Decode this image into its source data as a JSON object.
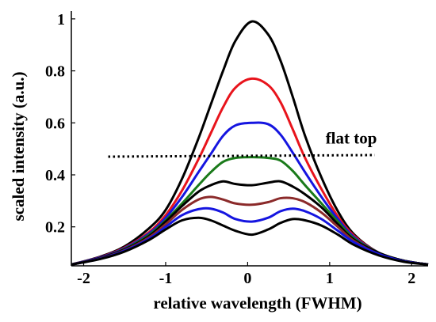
{
  "chart_data": {
    "type": "line",
    "title": "",
    "xlabel": "relative wavelength (FWHM)",
    "ylabel": "scaled intensity (a.u.)",
    "xlim": [
      -2.15,
      2.2
    ],
    "ylim": [
      0.05,
      1.03
    ],
    "grid": false,
    "xticks": [
      {
        "value": -2,
        "label": "-2"
      },
      {
        "value": -1,
        "label": "-1"
      },
      {
        "value": 0,
        "label": "0"
      },
      {
        "value": 1,
        "label": "1"
      },
      {
        "value": 2,
        "label": "2"
      }
    ],
    "yticks": [
      {
        "value": 0.2,
        "label": "0.2"
      },
      {
        "value": 0.4,
        "label": "0.4"
      },
      {
        "value": 0.6,
        "label": "0.6"
      },
      {
        "value": 0.8,
        "label": "0.8"
      },
      {
        "value": 1.0,
        "label": "1"
      }
    ],
    "x": [
      -2.15,
      -1.8,
      -1.5,
      -1.2,
      -1.0,
      -0.8,
      -0.6,
      -0.45,
      -0.3,
      -0.15,
      0.05,
      0.25,
      0.4,
      0.55,
      0.7,
      0.9,
      1.1,
      1.3,
      1.6,
      1.9,
      2.2
    ],
    "series": [
      {
        "color": "#000000",
        "values": [
          0.055,
          0.085,
          0.125,
          0.195,
          0.265,
          0.385,
          0.54,
          0.67,
          0.8,
          0.915,
          0.99,
          0.94,
          0.84,
          0.7,
          0.55,
          0.39,
          0.26,
          0.17,
          0.1,
          0.07,
          0.055
        ]
      },
      {
        "color": "#e8141c",
        "values": [
          0.055,
          0.083,
          0.12,
          0.18,
          0.245,
          0.34,
          0.46,
          0.56,
          0.66,
          0.735,
          0.77,
          0.745,
          0.68,
          0.575,
          0.465,
          0.345,
          0.24,
          0.165,
          0.1,
          0.07,
          0.055
        ]
      },
      {
        "color": "#1515e0",
        "values": [
          0.055,
          0.082,
          0.118,
          0.175,
          0.235,
          0.315,
          0.41,
          0.48,
          0.55,
          0.59,
          0.6,
          0.595,
          0.555,
          0.485,
          0.41,
          0.315,
          0.23,
          0.16,
          0.1,
          0.07,
          0.055
        ]
      },
      {
        "color": "#1a7a1a",
        "values": [
          0.055,
          0.08,
          0.115,
          0.17,
          0.225,
          0.29,
          0.36,
          0.41,
          0.45,
          0.465,
          0.468,
          0.465,
          0.455,
          0.415,
          0.36,
          0.29,
          0.22,
          0.155,
          0.1,
          0.07,
          0.055
        ]
      },
      {
        "color": "#000000",
        "values": [
          0.055,
          0.08,
          0.113,
          0.165,
          0.22,
          0.28,
          0.335,
          0.36,
          0.375,
          0.365,
          0.36,
          0.37,
          0.375,
          0.355,
          0.325,
          0.275,
          0.21,
          0.15,
          0.1,
          0.07,
          0.055
        ]
      },
      {
        "color": "#8b2a2a",
        "values": [
          0.055,
          0.078,
          0.11,
          0.16,
          0.21,
          0.265,
          0.305,
          0.315,
          0.305,
          0.29,
          0.285,
          0.295,
          0.31,
          0.31,
          0.295,
          0.255,
          0.2,
          0.145,
          0.095,
          0.068,
          0.055
        ]
      },
      {
        "color": "#1515e0",
        "values": [
          0.055,
          0.077,
          0.108,
          0.155,
          0.2,
          0.245,
          0.268,
          0.27,
          0.255,
          0.23,
          0.22,
          0.235,
          0.26,
          0.27,
          0.26,
          0.23,
          0.185,
          0.14,
          0.095,
          0.068,
          0.055
        ]
      },
      {
        "color": "#000000",
        "values": [
          0.055,
          0.076,
          0.105,
          0.15,
          0.19,
          0.225,
          0.235,
          0.225,
          0.205,
          0.185,
          0.17,
          0.19,
          0.215,
          0.23,
          0.225,
          0.205,
          0.17,
          0.13,
          0.09,
          0.066,
          0.055
        ]
      }
    ],
    "annotations": [
      {
        "text": "flat top",
        "x": 0.95,
        "y": 0.52
      },
      {
        "type": "hline-dotted",
        "x_start": -1.7,
        "x_end": 1.55,
        "y": 0.47
      }
    ]
  }
}
